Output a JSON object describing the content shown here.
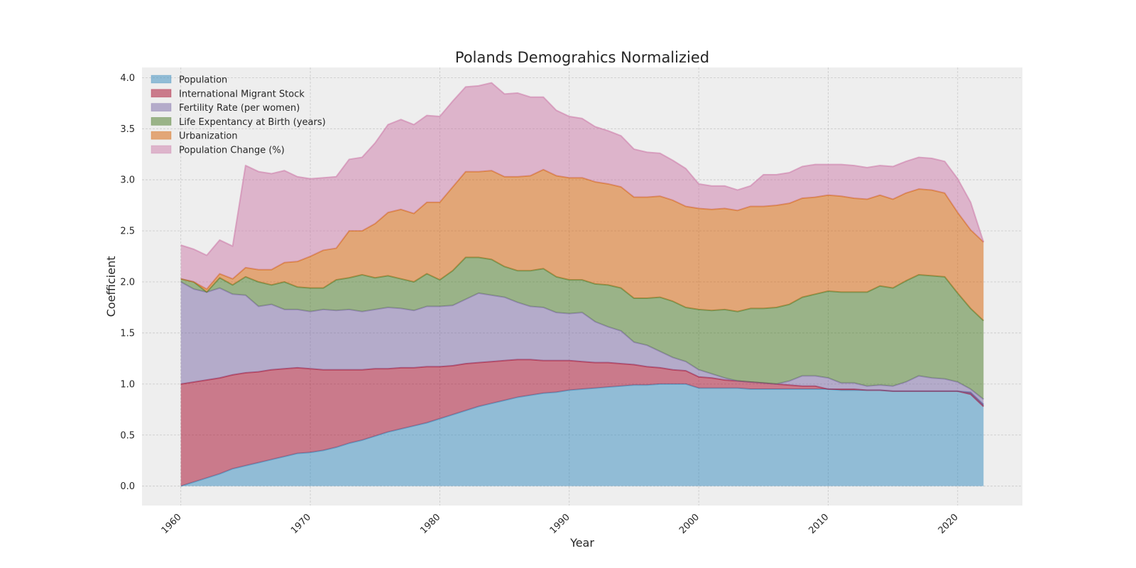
{
  "chart_data": {
    "type": "area",
    "stacked": true,
    "title": "Polands Demograhics Normalizied",
    "xlabel": "Year",
    "ylabel": "Coefficient",
    "xlim": [
      1957,
      2025
    ],
    "ylim": [
      -0.19,
      4.1
    ],
    "xticks": [
      1960,
      1970,
      1980,
      1990,
      2000,
      2010,
      2020
    ],
    "xtick_labels": [
      "1960",
      "1970",
      "1980",
      "1990",
      "2000",
      "2010",
      "2020"
    ],
    "yticks": [
      0.0,
      0.5,
      1.0,
      1.5,
      2.0,
      2.5,
      3.0,
      3.5,
      4.0
    ],
    "ytick_labels": [
      "0.0",
      "0.5",
      "1.0",
      "1.5",
      "2.0",
      "2.5",
      "3.0",
      "3.5",
      "4.0"
    ],
    "grid": true,
    "legend_position": "top-left",
    "x": [
      1960,
      1961,
      1962,
      1963,
      1964,
      1965,
      1966,
      1967,
      1968,
      1969,
      1970,
      1971,
      1972,
      1973,
      1974,
      1975,
      1976,
      1977,
      1978,
      1979,
      1980,
      1981,
      1982,
      1983,
      1984,
      1985,
      1986,
      1987,
      1988,
      1989,
      1990,
      1991,
      1992,
      1993,
      1994,
      1995,
      1996,
      1997,
      1998,
      1999,
      2000,
      2001,
      2002,
      2003,
      2004,
      2005,
      2006,
      2007,
      2008,
      2009,
      2010,
      2011,
      2012,
      2013,
      2014,
      2015,
      2016,
      2017,
      2018,
      2019,
      2020,
      2021,
      2022
    ],
    "series": [
      {
        "name": "Population",
        "color": "#348abd",
        "values": [
          0.0,
          0.04,
          0.08,
          0.12,
          0.17,
          0.2,
          0.23,
          0.26,
          0.29,
          0.32,
          0.33,
          0.35,
          0.38,
          0.42,
          0.45,
          0.49,
          0.53,
          0.56,
          0.59,
          0.62,
          0.66,
          0.7,
          0.74,
          0.78,
          0.81,
          0.84,
          0.87,
          0.89,
          0.91,
          0.92,
          0.94,
          0.95,
          0.96,
          0.97,
          0.98,
          0.99,
          0.99,
          1.0,
          1.0,
          1.0,
          0.96,
          0.96,
          0.96,
          0.96,
          0.95,
          0.95,
          0.95,
          0.95,
          0.95,
          0.95,
          0.95,
          0.94,
          0.94,
          0.94,
          0.94,
          0.93,
          0.93,
          0.93,
          0.93,
          0.93,
          0.93,
          0.92,
          0.8
        ]
      },
      {
        "name": "International Migrant Stock",
        "color": "#a60628",
        "values": [
          1.0,
          0.98,
          0.96,
          0.94,
          0.92,
          0.91,
          0.89,
          0.88,
          0.86,
          0.84,
          0.82,
          0.79,
          0.76,
          0.72,
          0.69,
          0.66,
          0.62,
          0.6,
          0.57,
          0.55,
          0.51,
          0.48,
          0.46,
          0.43,
          0.41,
          0.39,
          0.37,
          0.35,
          0.32,
          0.31,
          0.29,
          0.27,
          0.25,
          0.24,
          0.22,
          0.2,
          0.18,
          0.16,
          0.14,
          0.13,
          0.11,
          0.1,
          0.08,
          0.07,
          0.07,
          0.06,
          0.05,
          0.04,
          0.03,
          0.03,
          0.0,
          0.01,
          0.01,
          0.0,
          0.0,
          0.0,
          0.0,
          0.0,
          0.0,
          0.0,
          0.0,
          -0.02,
          -0.02
        ]
      },
      {
        "name": "Fertility Rate (per women)",
        "color": "#7a68a6",
        "values": [
          1.0,
          0.91,
          0.86,
          0.88,
          0.79,
          0.76,
          0.64,
          0.64,
          0.58,
          0.57,
          0.56,
          0.59,
          0.58,
          0.59,
          0.57,
          0.58,
          0.6,
          0.58,
          0.56,
          0.59,
          0.59,
          0.59,
          0.63,
          0.68,
          0.65,
          0.62,
          0.56,
          0.52,
          0.52,
          0.47,
          0.46,
          0.48,
          0.4,
          0.35,
          0.32,
          0.22,
          0.21,
          0.16,
          0.12,
          0.09,
          0.07,
          0.04,
          0.02,
          0.0,
          0.0,
          0.0,
          0.0,
          0.04,
          0.1,
          0.1,
          0.11,
          0.06,
          0.06,
          0.04,
          0.05,
          0.05,
          0.09,
          0.15,
          0.13,
          0.12,
          0.09,
          0.05,
          0.07
        ]
      },
      {
        "name": "Life Expentancy at Birth (years)",
        "color": "#467821",
        "values": [
          0.03,
          0.07,
          0.0,
          0.1,
          0.09,
          0.18,
          0.24,
          0.19,
          0.27,
          0.22,
          0.23,
          0.21,
          0.3,
          0.31,
          0.36,
          0.31,
          0.31,
          0.29,
          0.28,
          0.32,
          0.26,
          0.34,
          0.41,
          0.35,
          0.35,
          0.3,
          0.31,
          0.35,
          0.38,
          0.35,
          0.33,
          0.32,
          0.37,
          0.41,
          0.42,
          0.43,
          0.46,
          0.53,
          0.55,
          0.53,
          0.59,
          0.62,
          0.67,
          0.68,
          0.72,
          0.73,
          0.75,
          0.75,
          0.77,
          0.8,
          0.85,
          0.89,
          0.89,
          0.92,
          0.97,
          0.96,
          0.99,
          0.99,
          1.0,
          1.0,
          0.87,
          0.79,
          0.77
        ]
      },
      {
        "name": "Urbanization",
        "color": "#d55e00",
        "values": [
          0.0,
          0.0,
          0.03,
          0.04,
          0.06,
          0.09,
          0.12,
          0.15,
          0.19,
          0.25,
          0.31,
          0.37,
          0.31,
          0.46,
          0.43,
          0.53,
          0.62,
          0.68,
          0.67,
          0.7,
          0.76,
          0.82,
          0.84,
          0.84,
          0.87,
          0.88,
          0.92,
          0.93,
          0.97,
          0.99,
          1.0,
          1.0,
          1.0,
          0.99,
          0.99,
          0.99,
          0.99,
          0.99,
          0.99,
          0.99,
          0.99,
          0.99,
          0.99,
          0.99,
          1.0,
          1.0,
          1.0,
          0.99,
          0.97,
          0.95,
          0.94,
          0.94,
          0.92,
          0.91,
          0.89,
          0.87,
          0.86,
          0.84,
          0.84,
          0.82,
          0.79,
          0.77,
          0.77
        ]
      },
      {
        "name": "Population Change (%)",
        "color": "#cc79a7",
        "values": [
          0.33,
          0.32,
          0.33,
          0.33,
          0.32,
          1.0,
          0.96,
          0.94,
          0.9,
          0.83,
          0.76,
          0.71,
          0.7,
          0.7,
          0.72,
          0.79,
          0.86,
          0.88,
          0.87,
          0.85,
          0.84,
          0.84,
          0.83,
          0.84,
          0.86,
          0.81,
          0.82,
          0.77,
          0.71,
          0.64,
          0.6,
          0.58,
          0.54,
          0.52,
          0.5,
          0.47,
          0.44,
          0.42,
          0.39,
          0.37,
          0.24,
          0.23,
          0.22,
          0.2,
          0.2,
          0.31,
          0.3,
          0.3,
          0.31,
          0.32,
          0.3,
          0.31,
          0.32,
          0.31,
          0.29,
          0.32,
          0.31,
          0.31,
          0.31,
          0.31,
          0.33,
          0.27,
          0.0
        ]
      }
    ]
  }
}
